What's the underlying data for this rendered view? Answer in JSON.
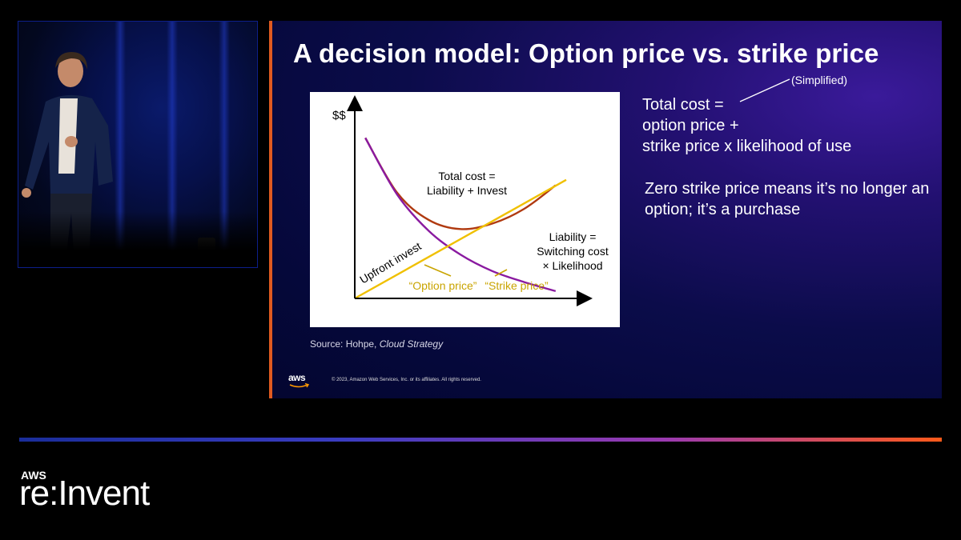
{
  "slide": {
    "title": "A decision model: Option price vs. strike price",
    "simplified": "(Simplified)",
    "formula_lines": [
      "Total cost =",
      "option price +",
      "strike price x likelihood of use"
    ],
    "note": "Zero strike price means it’s no longer an option; it’s a purchase",
    "source_prefix": "Source: Hohpe, ",
    "source_book": "Cloud Strategy",
    "copyright": "© 2023, Amazon Web Services, Inc. or its affiliates. All rights reserved.",
    "aws_logo": "aws"
  },
  "brand": {
    "aws": "AWS",
    "reinvent": "re:Invent"
  },
  "colors": {
    "total_cost": "#b03a10",
    "liability": "#8a1aa0",
    "invest": "#f0c000",
    "annotation": "#c9a400",
    "divider_start": "#1a2d9a",
    "divider_end": "#ff5a1a"
  },
  "chart_data": {
    "type": "line",
    "ylabel": "$$",
    "xlabel": "",
    "series": [
      {
        "label_lines": [
          "Total cost =",
          "Liability + Invest"
        ],
        "color": "#b03a10",
        "x": [
          0.05,
          0.2,
          0.35,
          0.5,
          0.65,
          0.8,
          0.95
        ],
        "y": [
          0.88,
          0.58,
          0.43,
          0.38,
          0.41,
          0.49,
          0.62
        ]
      },
      {
        "label_lines": [
          "Liability =",
          "Switching cost",
          "× Likelihood"
        ],
        "color": "#8a1aa0",
        "x": [
          0.05,
          0.2,
          0.35,
          0.5,
          0.65,
          0.8,
          0.95
        ],
        "y": [
          0.88,
          0.57,
          0.37,
          0.24,
          0.15,
          0.09,
          0.04
        ]
      },
      {
        "label_lines": [
          "Upfront invest"
        ],
        "color": "#f0c000",
        "x": [
          0.0,
          1.0
        ],
        "y": [
          0.0,
          0.65
        ]
      }
    ],
    "annotations": [
      "“Option price”",
      "“Strike price”"
    ]
  }
}
